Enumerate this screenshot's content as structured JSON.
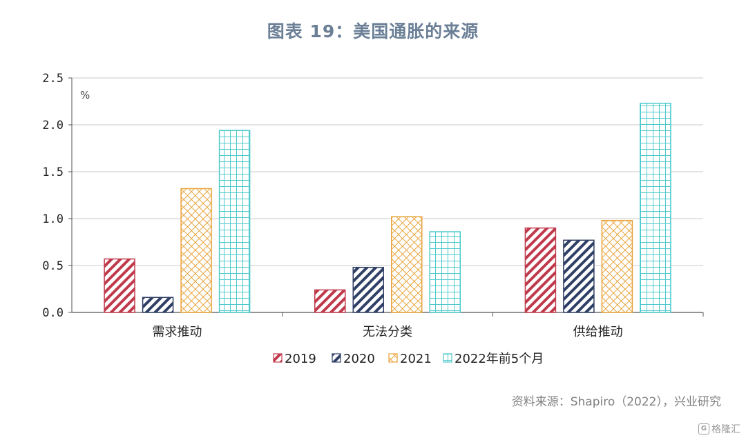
{
  "title": "图表 19：美国通胀的来源",
  "source_note": "资料来源：Shapiro（2022），兴业研究",
  "watermark": {
    "text": "格隆汇",
    "logo": "G"
  },
  "colors": {
    "2019": "#c0394a",
    "2020": "#2f3f66",
    "2021": "#e8a33a",
    "2022": "#4dc9cc",
    "grid": "#c8c8c8",
    "axis": "#555555"
  },
  "chart_data": {
    "type": "bar",
    "unit": "%",
    "categories": [
      "需求推动",
      "无法分类",
      "供给推动"
    ],
    "series": [
      {
        "name": "2019",
        "values": [
          0.57,
          0.24,
          0.9
        ],
        "pattern": "diagonal"
      },
      {
        "name": "2020",
        "values": [
          0.16,
          0.48,
          0.77
        ],
        "pattern": "diagonal"
      },
      {
        "name": "2021",
        "values": [
          1.32,
          1.02,
          0.98
        ],
        "pattern": "crosshatch"
      },
      {
        "name": "2022年前5个月",
        "values": [
          1.94,
          0.86,
          2.23
        ],
        "pattern": "grid"
      }
    ],
    "ylim": [
      0,
      2.5
    ],
    "yticks": [
      "0.0",
      "0.5",
      "1.0",
      "1.5",
      "2.0",
      "2.5"
    ],
    "grid": true,
    "legend": "bottom"
  }
}
